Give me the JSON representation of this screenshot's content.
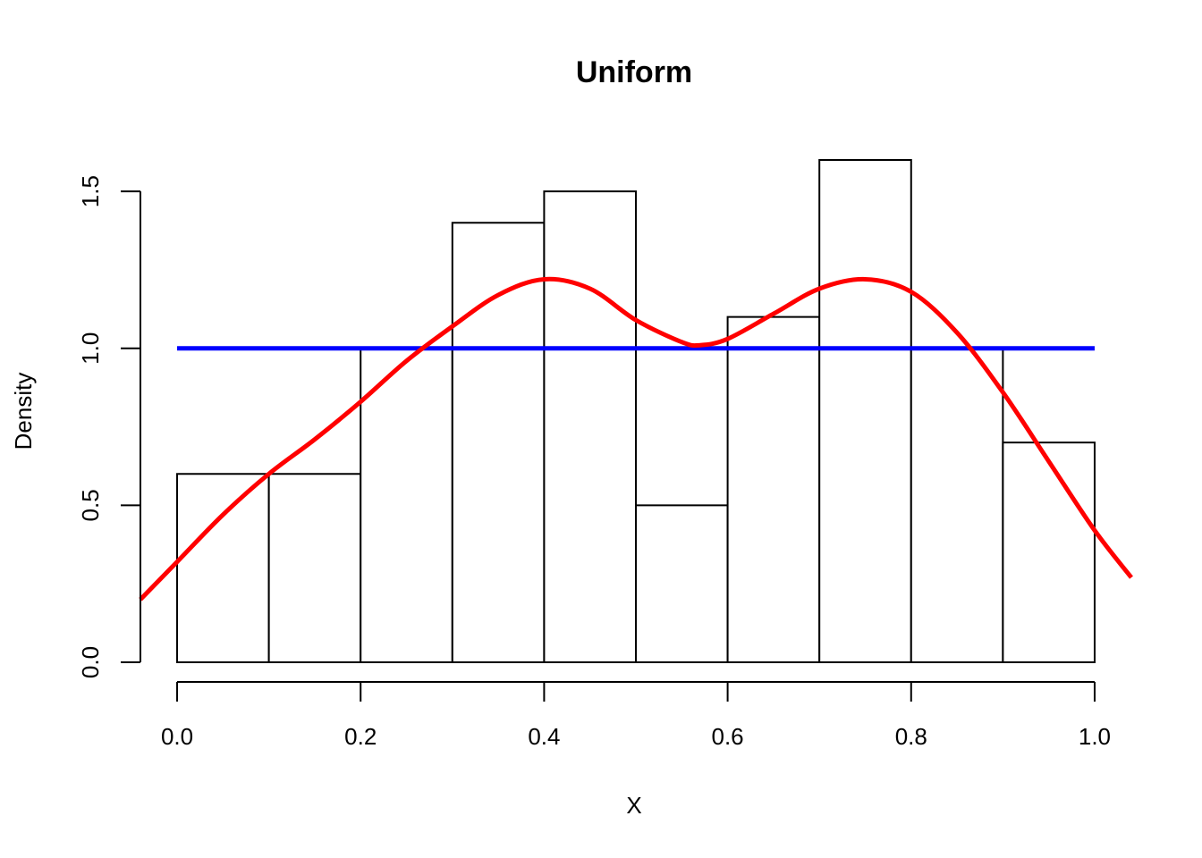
{
  "chart_data": {
    "type": "bar",
    "title": "Uniform",
    "xlabel": "X",
    "ylabel": "Density",
    "xlim": [
      -0.04,
      1.04
    ],
    "ylim": [
      0,
      1.6
    ],
    "x_ticks": [
      "0.0",
      "0.2",
      "0.4",
      "0.6",
      "0.8",
      "1.0"
    ],
    "y_ticks": [
      "0.0",
      "0.5",
      "1.0",
      "1.5"
    ],
    "histogram": {
      "bin_edges": [
        0.0,
        0.1,
        0.2,
        0.3,
        0.4,
        0.5,
        0.6,
        0.7,
        0.8,
        0.9,
        1.0
      ],
      "values": [
        0.6,
        0.6,
        1.0,
        1.4,
        1.5,
        0.5,
        1.1,
        1.6,
        1.0,
        0.7
      ]
    },
    "lines": [
      {
        "kind": "reference density",
        "color": "#0000ff",
        "x": [
          0.0,
          1.0
        ],
        "y": [
          1.0,
          1.0
        ]
      },
      {
        "kind": "kernel density estimate",
        "color": "#ff0000",
        "x": [
          -0.04,
          0.0,
          0.05,
          0.1,
          0.15,
          0.2,
          0.25,
          0.3,
          0.35,
          0.4,
          0.45,
          0.5,
          0.55,
          0.57,
          0.6,
          0.65,
          0.7,
          0.75,
          0.8,
          0.85,
          0.9,
          0.95,
          1.0,
          1.04
        ],
        "y": [
          0.2,
          0.32,
          0.47,
          0.6,
          0.71,
          0.83,
          0.96,
          1.07,
          1.17,
          1.22,
          1.19,
          1.09,
          1.02,
          1.01,
          1.03,
          1.11,
          1.19,
          1.22,
          1.18,
          1.05,
          0.86,
          0.64,
          0.42,
          0.27
        ]
      }
    ]
  }
}
